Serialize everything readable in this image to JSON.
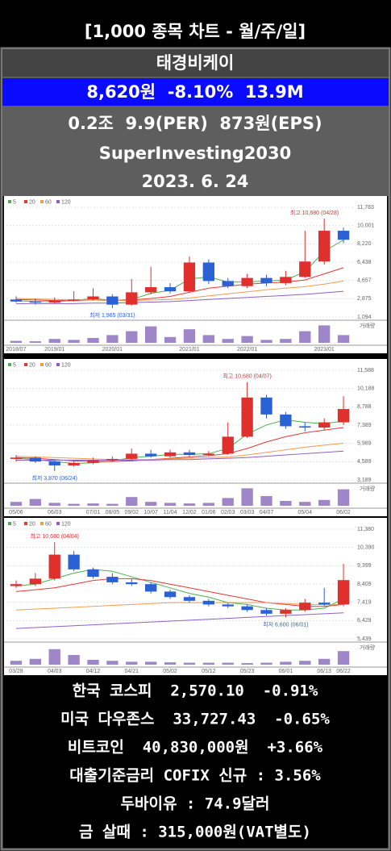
{
  "header": {
    "title": "[1,000 종목 차트 - 월/주/일]"
  },
  "stock": {
    "name": "태경비케이",
    "price_line": "8,620원  -8.10%  13.9M",
    "metrics": "0.2조  9.9(PER)  873원(EPS)",
    "author": "SuperInvesting2030",
    "date": "2023. 6. 24"
  },
  "chart_data": [
    {
      "type": "candlestick",
      "up_color": "#e0302d",
      "down_color": "#2a62d6",
      "volume_label": "거래량",
      "volume_color": "#9e86c8",
      "high_label": "최고 10,680 (04/28)",
      "low_label": "최저 1,965 (03/31)",
      "categories": [
        "2018/07",
        null,
        "2019/01",
        null,
        null,
        "2020/01",
        null,
        null,
        null,
        "2021/01",
        null,
        null,
        "2022/01",
        null,
        null,
        null,
        "2023/01",
        null
      ],
      "open": [
        2800,
        2600,
        2500,
        2700,
        2800,
        3100,
        2300,
        3500,
        4000,
        3600,
        6400,
        4600,
        4100,
        4900,
        4400,
        5000,
        6500,
        9500
      ],
      "close": [
        2600,
        2500,
        2700,
        2800,
        3100,
        2300,
        3500,
        4000,
        3600,
        6400,
        4600,
        4100,
        4900,
        4400,
        5000,
        6500,
        9500,
        8620
      ],
      "high": [
        3100,
        2900,
        3000,
        3600,
        3900,
        3300,
        4800,
        6000,
        4400,
        7000,
        6700,
        4900,
        5300,
        5200,
        5600,
        9500,
        10680,
        9800
      ],
      "low": [
        2500,
        2300,
        2400,
        2600,
        2700,
        1965,
        2200,
        3300,
        3400,
        3500,
        4300,
        3900,
        3900,
        4100,
        4200,
        4900,
        6200,
        8300
      ],
      "series": [
        {
          "name": "5",
          "color": "#4caf50",
          "values": [
            2700,
            2600,
            2600,
            2700,
            2900,
            2700,
            2800,
            3400,
            3700,
            4800,
            5000,
            4500,
            4500,
            4600,
            4700,
            5500,
            7500,
            8600
          ]
        },
        {
          "name": "20",
          "color": "#e53935",
          "values": [
            2800,
            2750,
            2700,
            2700,
            2750,
            2700,
            2750,
            2900,
            3100,
            3500,
            3900,
            4100,
            4300,
            4400,
            4500,
            4700,
            5300,
            5900
          ]
        },
        {
          "name": "60",
          "color": "#f39c4a",
          "values": [
            2900,
            2850,
            2800,
            2750,
            2750,
            2700,
            2700,
            2750,
            2800,
            2950,
            3150,
            3350,
            3550,
            3750,
            3900,
            4050,
            4300,
            4600
          ]
        },
        {
          "name": "120",
          "color": "#8e5fc8",
          "values": [
            2400,
            2400,
            2400,
            2400,
            2450,
            2450,
            2500,
            2550,
            2600,
            2700,
            2800,
            2900,
            3000,
            3100,
            3200,
            3300,
            3450,
            3600
          ]
        }
      ],
      "volume": [
        10,
        8,
        20,
        15,
        25,
        40,
        60,
        85,
        30,
        70,
        40,
        20,
        35,
        15,
        20,
        60,
        90,
        40
      ],
      "volume_ylim": [
        0,
        100
      ],
      "ylim": [
        1094,
        11783
      ],
      "yticks": [
        {
          "value": 11783,
          "label": "11,783"
        },
        {
          "value": 10001,
          "label": "10,001"
        },
        {
          "value": 8220,
          "label": "8,220"
        },
        {
          "value": 6438,
          "label": "6,438"
        },
        {
          "value": 4657,
          "label": "4,657"
        },
        {
          "value": 2875,
          "label": "2,875"
        },
        {
          "value": 1094,
          "label": "1,094"
        }
      ]
    },
    {
      "type": "candlestick",
      "up_color": "#e0302d",
      "down_color": "#2a62d6",
      "volume_label": "거래량",
      "volume_color": "#9e86c8",
      "high_label": "최고 10,680 (04/07)",
      "low_label": "최저 3,870 (06/24)",
      "categories": [
        "05/06",
        null,
        "06/03",
        null,
        "07/01",
        "08/05",
        "09/02",
        "10/07",
        "11/04",
        "12/02",
        "01/06",
        "02/03",
        "03/03",
        "04/07",
        null,
        "05/04",
        null,
        "06/02"
      ],
      "open": [
        4800,
        4900,
        4600,
        4300,
        4500,
        4700,
        4800,
        5200,
        5000,
        5300,
        5100,
        5200,
        6500,
        9500,
        8200,
        7300,
        7200,
        7600
      ],
      "close": [
        4900,
        4600,
        4300,
        4500,
        4700,
        4800,
        5200,
        5000,
        5300,
        5100,
        5200,
        6500,
        9500,
        8200,
        7300,
        7200,
        7600,
        8620
      ],
      "high": [
        5100,
        5000,
        4700,
        4700,
        4900,
        5000,
        5600,
        5500,
        5500,
        5500,
        5400,
        7600,
        10680,
        9700,
        8400,
        7600,
        7900,
        9600
      ],
      "low": [
        4600,
        4500,
        3870,
        4200,
        4400,
        4600,
        4700,
        4900,
        4900,
        5000,
        5000,
        5100,
        6400,
        7900,
        7100,
        6900,
        7000,
        7400
      ],
      "series": [
        {
          "name": "5",
          "color": "#4caf50",
          "values": [
            4850,
            4750,
            4600,
            4450,
            4500,
            4650,
            4900,
            5000,
            5150,
            5150,
            5200,
            5600,
            6700,
            7400,
            7800,
            7600,
            7500,
            7700
          ]
        },
        {
          "name": "20",
          "color": "#e53935",
          "values": [
            4900,
            4850,
            4750,
            4650,
            4600,
            4600,
            4650,
            4750,
            4850,
            4950,
            5050,
            5200,
            5600,
            6100,
            6500,
            6800,
            7000,
            7200
          ]
        },
        {
          "name": "60",
          "color": "#f39c4a",
          "values": [
            5000,
            4950,
            4900,
            4850,
            4800,
            4750,
            4750,
            4750,
            4800,
            4850,
            4900,
            4950,
            5100,
            5300,
            5500,
            5700,
            5850,
            6000
          ]
        },
        {
          "name": "120",
          "color": "#8e5fc8",
          "values": [
            4700,
            4700,
            4700,
            4700,
            4700,
            4700,
            4700,
            4700,
            4750,
            4750,
            4800,
            4850,
            4900,
            5000,
            5100,
            5200,
            5300,
            5400
          ]
        }
      ],
      "volume": [
        20,
        35,
        15,
        10,
        12,
        10,
        45,
        20,
        15,
        12,
        15,
        40,
        90,
        50,
        25,
        20,
        30,
        85
      ],
      "volume_ylim": [
        0,
        100
      ],
      "ylim": [
        3189,
        11588
      ],
      "yticks": [
        {
          "value": 11588,
          "label": "11,588"
        },
        {
          "value": 10188,
          "label": "10,188"
        },
        {
          "value": 8788,
          "label": "8,788"
        },
        {
          "value": 7389,
          "label": "7,389"
        },
        {
          "value": 5989,
          "label": "5,989"
        },
        {
          "value": 4589,
          "label": "4,589"
        },
        {
          "value": 3189,
          "label": "3,189"
        }
      ]
    },
    {
      "type": "candlestick",
      "up_color": "#e0302d",
      "down_color": "#2a62d6",
      "volume_label": "거래량",
      "volume_color": "#9e86c8",
      "high_label": "최고 10,680 (04/04)",
      "low_label": "최저 6,600 (06/01)",
      "categories": [
        "03/28",
        null,
        "04/03",
        null,
        "04/12",
        null,
        "04/21",
        null,
        "05/02",
        null,
        "05/12",
        null,
        "05/23",
        null,
        "06/01",
        null,
        "06/13",
        "06/22"
      ],
      "open": [
        8300,
        8400,
        8700,
        10000,
        9200,
        8800,
        8500,
        8400,
        8000,
        7700,
        7500,
        7300,
        7200,
        7000,
        6800,
        7000,
        7400,
        7300
      ],
      "close": [
        8400,
        8700,
        10000,
        9200,
        8800,
        8500,
        8400,
        8000,
        7700,
        7500,
        7300,
        7200,
        7000,
        6800,
        7000,
        7400,
        7300,
        8620
      ],
      "high": [
        8600,
        9000,
        10680,
        10200,
        9300,
        9000,
        8700,
        8500,
        8100,
        7800,
        7600,
        7400,
        7300,
        7100,
        7100,
        7600,
        8200,
        9500
      ],
      "low": [
        8200,
        8300,
        8600,
        9100,
        8700,
        8400,
        8300,
        7900,
        7600,
        7400,
        7200,
        7100,
        6900,
        6700,
        6600,
        6900,
        7200,
        7200
      ],
      "series": [
        {
          "name": "5",
          "color": "#4caf50",
          "values": [
            8300,
            8400,
            8700,
            9000,
            9200,
            9100,
            8800,
            8500,
            8200,
            7900,
            7700,
            7400,
            7300,
            7100,
            7000,
            7000,
            7100,
            7600
          ]
        },
        {
          "name": "20",
          "color": "#e53935",
          "values": [
            8000,
            8100,
            8200,
            8400,
            8600,
            8700,
            8700,
            8600,
            8400,
            8200,
            8000,
            7800,
            7600,
            7400,
            7300,
            7200,
            7200,
            7300
          ]
        },
        {
          "name": "60",
          "color": "#f39c4a",
          "values": [
            7000,
            7050,
            7100,
            7150,
            7200,
            7250,
            7300,
            7350,
            7400,
            7400,
            7400,
            7400,
            7400,
            7400,
            7350,
            7300,
            7300,
            7300
          ]
        },
        {
          "name": "120",
          "color": "#8e5fc8",
          "values": [
            6000,
            6050,
            6100,
            6150,
            6200,
            6250,
            6300,
            6350,
            6400,
            6450,
            6500,
            6550,
            6600,
            6650,
            6700,
            6750,
            6800,
            6850
          ]
        }
      ],
      "volume": [
        20,
        30,
        80,
        50,
        25,
        20,
        15,
        15,
        12,
        10,
        10,
        10,
        8,
        10,
        15,
        20,
        30,
        70
      ],
      "volume_ylim": [
        0,
        100
      ],
      "ylim": [
        5439,
        11380
      ],
      "yticks": [
        {
          "value": 11380,
          "label": "11,380"
        },
        {
          "value": 10390,
          "label": "10,390"
        },
        {
          "value": 9399,
          "label": "9,399"
        },
        {
          "value": 8409,
          "label": "8,409"
        },
        {
          "value": 7419,
          "label": "7,419"
        },
        {
          "value": 6429,
          "label": "6,429"
        },
        {
          "value": 5439,
          "label": "5,439"
        }
      ]
    }
  ],
  "market": {
    "rows": [
      "한국 코스피  2,570.10  -0.91%",
      "미국 다우존스  33,727.43  -0.65%",
      "비트코인  40,830,000원  +3.66%",
      "대출기준금리 COFIX 신규 : 3.56%",
      "두바이유 : 74.9달러",
      "금 살때 : 315,000원(VAT별도)"
    ]
  }
}
